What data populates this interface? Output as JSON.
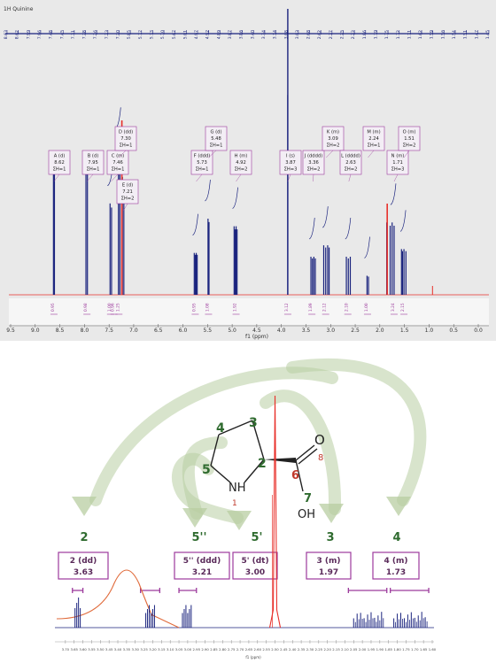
{
  "colors": {
    "panel_bg": "#e9e9e9",
    "spectrum_blue": "#1a237e",
    "highlight_red": "#e8302a",
    "multiplet_purple": "#9c3a9c",
    "arrow_green": "#b8cda2",
    "atom_green": "#2f6b2f",
    "curve_orange": "#e06a3a"
  },
  "top_panel": {
    "title": "1H Quinine",
    "xlabel": "f1 (ppm)"
  },
  "chart_data": [
    {
      "type": "line",
      "title": "1H Quinine",
      "xlabel": "f1 (ppm)",
      "xlim": [
        9.5,
        0.0
      ],
      "x_ticks": [
        "9.5",
        "9.0",
        "8.5",
        "8.0",
        "7.5",
        "7.0",
        "6.5",
        "6.0",
        "5.5",
        "5.0",
        "4.5",
        "4.0",
        "3.5",
        "3.0",
        "2.5",
        "2.0",
        "1.5",
        "1.0",
        "0.5",
        "0.0"
      ],
      "top_labels": [
        "8.63",
        "8.62",
        "7.99",
        "7.96",
        "7.48",
        "7.45",
        "7.31",
        "7.28",
        "7.26",
        "7.23",
        "7.20",
        "5.85",
        "5.77",
        "5.73",
        "5.70",
        "5.67",
        "5.01",
        "4.97",
        "4.92",
        "4.89",
        "3.87",
        "3.86",
        "3.40",
        "3.34",
        "3.14",
        "3.08",
        "3.03",
        "2.68",
        "2.62",
        "2.27",
        "2.25",
        "2.23",
        "1.86",
        "1.79",
        "1.75",
        "1.72",
        "1.71",
        "1.62",
        "1.59",
        "1.56",
        "1.54",
        "1.51",
        "1.47",
        "1.45"
      ],
      "top_labels_red": [
        "7.24",
        "2.23"
      ],
      "multiplets": [
        {
          "id": "A",
          "mult": "d",
          "shift": "8.62",
          "nh": "ΣH=1",
          "peaks": [
            8.63,
            8.61
          ],
          "h": 0.72
        },
        {
          "id": "B",
          "mult": "d",
          "shift": "7.95",
          "nh": "ΣH=1",
          "peaks": [
            7.97,
            7.94
          ],
          "h": 0.7
        },
        {
          "id": "C",
          "mult": "m",
          "shift": "7.46",
          "nh": "ΣH=1",
          "peaks": [
            7.48,
            7.45
          ],
          "h": 0.48
        },
        {
          "id": "D",
          "mult": "dd",
          "shift": "7.30",
          "nh": "ΣH=1",
          "peaks": [
            7.31,
            7.28
          ],
          "h": 0.78
        },
        {
          "id": "E",
          "mult": "d",
          "shift": "7.21",
          "nh": "ΣH=2",
          "peaks": [
            7.23,
            7.2
          ],
          "h": 0.62
        },
        {
          "id": "F",
          "mult": "ddd",
          "shift": "5.73",
          "nh": "ΣH=1",
          "peaks": [
            5.77,
            5.75,
            5.73,
            5.71
          ],
          "h": 0.22
        },
        {
          "id": "G",
          "mult": "d",
          "shift": "5.48",
          "nh": "ΣH=1",
          "peaks": [
            5.49,
            5.47
          ],
          "h": 0.4
        },
        {
          "id": "H",
          "mult": "m",
          "shift": "4.92",
          "nh": "ΣH=2",
          "peaks": [
            4.96,
            4.94,
            4.92,
            4.9
          ],
          "h": 0.36
        },
        {
          "id": "I",
          "mult": "s",
          "shift": "3.87",
          "nh": "ΣH=3",
          "peaks": [
            3.87
          ],
          "h": 1.05
        },
        {
          "id": "J",
          "mult": "dddd",
          "shift": "3.36",
          "nh": "ΣH=2",
          "peaks": [
            3.4,
            3.37,
            3.34,
            3.31
          ],
          "h": 0.2
        },
        {
          "id": "K",
          "mult": "m",
          "shift": "3.09",
          "nh": "ΣH=2",
          "peaks": [
            3.14,
            3.1,
            3.06,
            3.03
          ],
          "h": 0.26
        },
        {
          "id": "L",
          "mult": "dddd",
          "shift": "2.63",
          "nh": "ΣH=2",
          "peaks": [
            2.68,
            2.64,
            2.6
          ],
          "h": 0.2
        },
        {
          "id": "M",
          "mult": "m",
          "shift": "2.24",
          "nh": "ΣH=1",
          "peaks": [
            2.26,
            2.23
          ],
          "h": 0.1
        },
        {
          "id": "N",
          "mult": "m",
          "shift": "1.71",
          "nh": "ΣH=3",
          "peaks": [
            1.86,
            1.79,
            1.75,
            1.71
          ],
          "h": 0.38
        },
        {
          "id": "O",
          "mult": "m",
          "shift": "1.51",
          "nh": "ΣH=2",
          "peaks": [
            1.56,
            1.54,
            1.51,
            1.47
          ],
          "h": 0.24
        }
      ],
      "red_peaks": [
        7.24,
        1.85
      ],
      "integrals": [
        {
          "x": 8.62,
          "v": "0.95"
        },
        {
          "x": 7.95,
          "v": "0.98"
        },
        {
          "x": 7.47,
          "v": "1.00"
        },
        {
          "x": 7.4,
          "v": "0.96"
        },
        {
          "x": 7.3,
          "v": "1.25"
        },
        {
          "x": 5.75,
          "v": "0.95"
        },
        {
          "x": 5.48,
          "v": "1.08"
        },
        {
          "x": 4.92,
          "v": "1.92"
        },
        {
          "x": 3.87,
          "v": "3.12"
        },
        {
          "x": 3.38,
          "v": "1.89"
        },
        {
          "x": 3.1,
          "v": "2.12"
        },
        {
          "x": 2.65,
          "v": "2.10"
        },
        {
          "x": 2.25,
          "v": "1.00"
        },
        {
          "x": 1.71,
          "v": "3.24"
        },
        {
          "x": 1.51,
          "v": "2.15"
        }
      ]
    },
    {
      "type": "line",
      "xlabel": "f1 (ppm)",
      "xlim": [
        3.75,
        1.6
      ],
      "x_ticks": [
        "3.70",
        "3.65",
        "3.60",
        "3.55",
        "3.50",
        "3.45",
        "3.40",
        "3.35",
        "3.30",
        "3.25",
        "3.20",
        "3.15",
        "3.10",
        "3.05",
        "3.00",
        "2.95",
        "2.90",
        "2.85",
        "2.80",
        "2.75",
        "2.70",
        "2.65",
        "2.60",
        "2.55",
        "2.50",
        "2.45",
        "2.40",
        "2.35",
        "2.30",
        "2.25",
        "2.20",
        "2.15",
        "2.10",
        "2.05",
        "2.00",
        "1.95",
        "1.90",
        "1.85",
        "1.80",
        "1.75",
        "1.70",
        "1.65",
        "1.60"
      ],
      "multiplets": [
        {
          "atom": "2",
          "label": "2 (dd)",
          "shift": "3.63",
          "peaks": [
            3.645,
            3.635,
            3.625,
            3.615
          ]
        },
        {
          "atom": "5''",
          "label": "5'' (ddd)",
          "shift": "3.21",
          "peaks": [
            3.24,
            3.23,
            3.22,
            3.21,
            3.2,
            3.19
          ]
        },
        {
          "atom": "5'",
          "label": "5' (dt)",
          "shift": "3.00",
          "peaks": [
            3.03,
            3.02,
            3.01,
            3.0,
            2.99,
            2.98
          ]
        },
        {
          "atom": "3",
          "label": "3 (m)",
          "shift": "1.97",
          "peaks": [
            2.05,
            2.03,
            2.01,
            1.99,
            1.97,
            1.95,
            1.93,
            1.91,
            1.89
          ]
        },
        {
          "atom": "4",
          "label": "4 (m)",
          "shift": "1.73",
          "peaks": [
            1.82,
            1.8,
            1.78,
            1.76,
            1.74,
            1.72,
            1.7,
            1.68,
            1.66,
            1.64
          ]
        }
      ],
      "solvent_peak": 2.5,
      "broad_peak": 3.35
    }
  ],
  "molecule": {
    "atoms": {
      "c2": "2",
      "c3": "3",
      "c4": "4",
      "c5": "5",
      "n1_symbol": "NH",
      "n1_num": "1",
      "c6": "6",
      "o8_symbol": "O",
      "o8_num": "8",
      "o7_num": "7",
      "o7_symbol": "OH"
    }
  },
  "bottom_labels": {
    "atom_2": "2",
    "atom_5pp": "5''",
    "atom_5p": "5'",
    "atom_3": "3",
    "atom_4": "4"
  }
}
